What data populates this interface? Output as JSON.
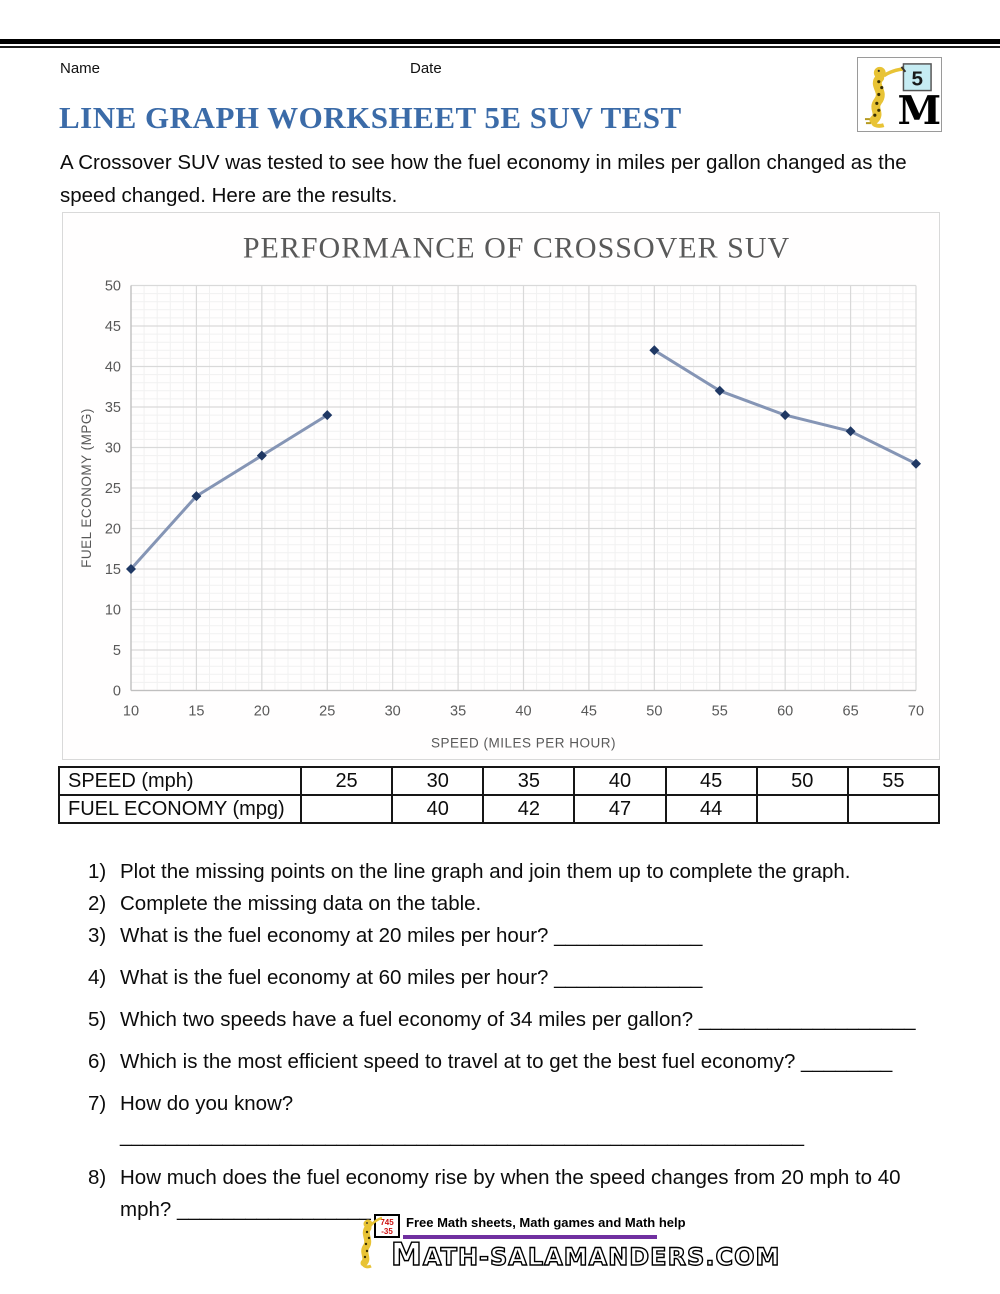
{
  "header": {
    "name_label": "Name",
    "date_label": "Date"
  },
  "logo": {
    "badge_number": "5"
  },
  "title": "LINE GRAPH WORKSHEET 5E SUV TEST",
  "title_color": "#3b6ba8",
  "intro": "A Crossover SUV was tested to see how the fuel economy in miles per gallon changed as the speed changed. Here are the results.",
  "chart_data": {
    "type": "line",
    "title": "PERFORMANCE OF CROSSOVER SUV",
    "xlabel": "SPEED (MILES PER HOUR)",
    "ylabel": "FUEL ECONOMY (MPG)",
    "x": [
      10,
      15,
      20,
      25,
      30,
      35,
      40,
      45,
      50,
      55,
      60,
      65,
      70
    ],
    "y": [
      15,
      24,
      29,
      34,
      null,
      null,
      null,
      null,
      42,
      37,
      34,
      32,
      28
    ],
    "xlim": [
      10,
      70
    ],
    "ylim": [
      0,
      50
    ],
    "x_major_step": 5,
    "x_minor_step": 1,
    "y_major_step": 5,
    "y_minor_step": 1,
    "grid": true,
    "legend": false,
    "line_color": "#8595b5",
    "marker": "diamond",
    "marker_color": "#1f3864",
    "major_grid_color": "#d9d9d9",
    "minor_grid_color": "#f1f1f1",
    "axis_color": "#bfbfbf",
    "text_color": "#595959"
  },
  "table": {
    "rows": [
      {
        "cells": [
          "SPEED (mph)",
          "25",
          "30",
          "35",
          "40",
          "45",
          "50",
          "55"
        ]
      },
      {
        "cells": [
          "FUEL ECONOMY (mpg)",
          "",
          "40",
          "42",
          "47",
          "44",
          "",
          ""
        ]
      }
    ]
  },
  "questions": [
    {
      "num": "1)",
      "text": "Plot the missing points on the line graph and join them up to complete the graph."
    },
    {
      "num": "2)",
      "text": "Complete the missing data on the table."
    },
    {
      "num": "3)",
      "text": "What is the fuel economy at 20 miles per hour? _____________"
    },
    {
      "num": "4)",
      "text": "What is the fuel economy at 60 miles per hour? _____________"
    },
    {
      "num": "5)",
      "text": "Which two speeds have a fuel economy of 34 miles per gallon? ___________________"
    },
    {
      "num": "6)",
      "text": "Which is the most efficient speed to travel at to get the best fuel economy? ________"
    },
    {
      "num": "7)",
      "text": "How do you know? ____________________________________________________________"
    },
    {
      "num": "8)",
      "text": "How much does the fuel economy rise by when the speed changes from 20 mph to 40 mph? _________________"
    }
  ],
  "footer": {
    "tagline": "Free Math sheets, Math games and Math help",
    "site": "MATH-SALAMANDERS.COM",
    "accent_color": "#7030a0",
    "board_lines": [
      "745",
      "-35"
    ]
  }
}
